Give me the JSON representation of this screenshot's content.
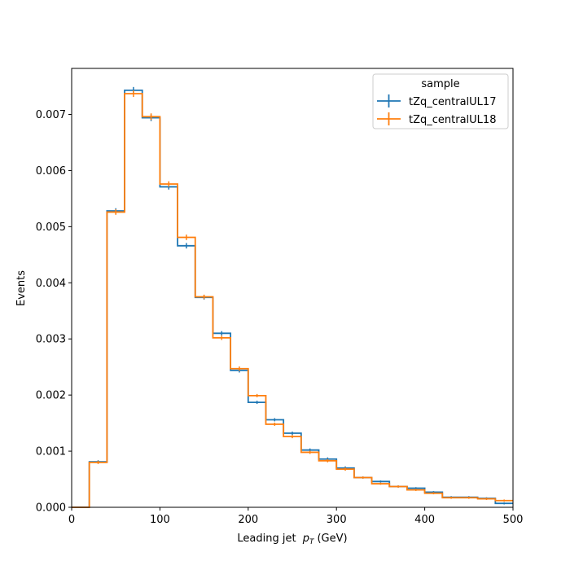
{
  "chart_data": {
    "type": "line",
    "xlabel": "Leading jet  p_T (GeV)",
    "xlabel_main": "Leading jet ",
    "xlabel_var": "p",
    "xlabel_sub": "T",
    "xlabel_unit": "(GeV)",
    "ylabel": "Events",
    "xlim": [
      0,
      500
    ],
    "ylim": [
      0,
      0.00782
    ],
    "xticks": [
      "0",
      "100",
      "200",
      "300",
      "400",
      "500"
    ],
    "yticks": [
      "0.000",
      "0.001",
      "0.002",
      "0.003",
      "0.004",
      "0.005",
      "0.006",
      "0.007"
    ],
    "grid": false,
    "legend": {
      "title": "sample",
      "placement": "top-right"
    },
    "bin_edges": [
      0,
      20,
      40,
      60,
      80,
      100,
      120,
      140,
      160,
      180,
      200,
      220,
      240,
      260,
      280,
      300,
      320,
      340,
      360,
      380,
      400,
      420,
      440,
      460,
      480,
      500
    ],
    "series": [
      {
        "name": "tZq_centralUL17",
        "color": "#1f77b4",
        "values": [
          0.0,
          0.00081,
          0.00528,
          0.00743,
          0.00694,
          0.00571,
          0.00466,
          0.00374,
          0.0031,
          0.00244,
          0.00187,
          0.00156,
          0.00132,
          0.00102,
          0.00086,
          0.0007,
          0.00053,
          0.00046,
          0.00037,
          0.00034,
          0.00027,
          0.00018,
          0.00018,
          0.00016,
          7e-05
        ],
        "errors": [
          0.0,
          2e-05,
          4e-05,
          5e-05,
          5e-05,
          4e-05,
          4e-05,
          3e-05,
          3e-05,
          3e-05,
          2e-05,
          2e-05,
          2e-05,
          2e-05,
          2e-05,
          2e-05,
          1e-05,
          1e-05,
          1e-05,
          1e-05,
          1e-05,
          1e-05,
          1e-05,
          1e-05,
          1e-05
        ]
      },
      {
        "name": "tZq_centralUL18",
        "color": "#ff7f0e",
        "values": [
          0.0,
          0.0008,
          0.00526,
          0.00737,
          0.00696,
          0.00576,
          0.00481,
          0.00375,
          0.00302,
          0.00247,
          0.00199,
          0.00148,
          0.00126,
          0.00098,
          0.00083,
          0.00068,
          0.00053,
          0.00042,
          0.00037,
          0.00031,
          0.00025,
          0.00017,
          0.00017,
          0.00015,
          0.00012
        ],
        "errors": [
          0.0,
          2e-05,
          4e-05,
          5e-05,
          5e-05,
          4e-05,
          4e-05,
          3e-05,
          3e-05,
          3e-05,
          2e-05,
          2e-05,
          2e-05,
          2e-05,
          2e-05,
          2e-05,
          1e-05,
          1e-05,
          1e-05,
          1e-05,
          1e-05,
          1e-05,
          1e-05,
          1e-05,
          1e-05
        ]
      }
    ]
  }
}
